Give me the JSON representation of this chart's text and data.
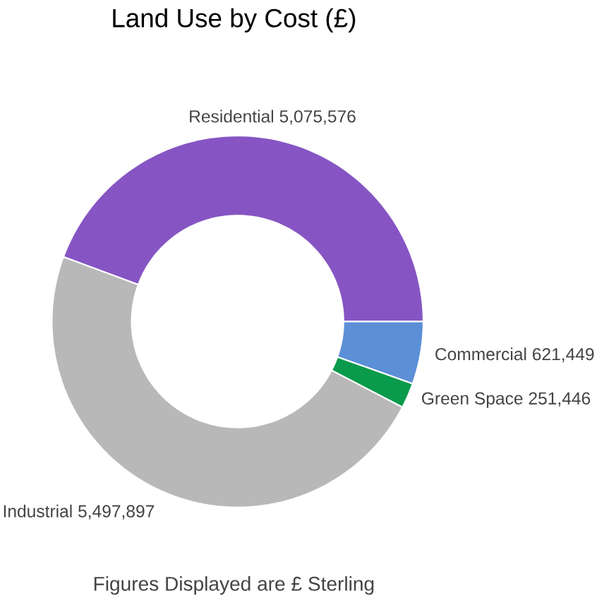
{
  "chart_data": {
    "type": "donut",
    "title": "Land Use by Cost (£)",
    "categories": [
      "Residential",
      "Commercial",
      "Green Space",
      "Industrial"
    ],
    "values": [
      5075576,
      621449,
      251446,
      5497897
    ],
    "value_labels": [
      "5,075,576",
      "621,449",
      "251,446",
      "5,497,897"
    ],
    "colors": [
      "#8655c3",
      "#5b8fd6",
      "#0a9a4b",
      "#b8b8b8"
    ],
    "annotations": [
      "Figures Displayed are £ Sterling"
    ]
  }
}
